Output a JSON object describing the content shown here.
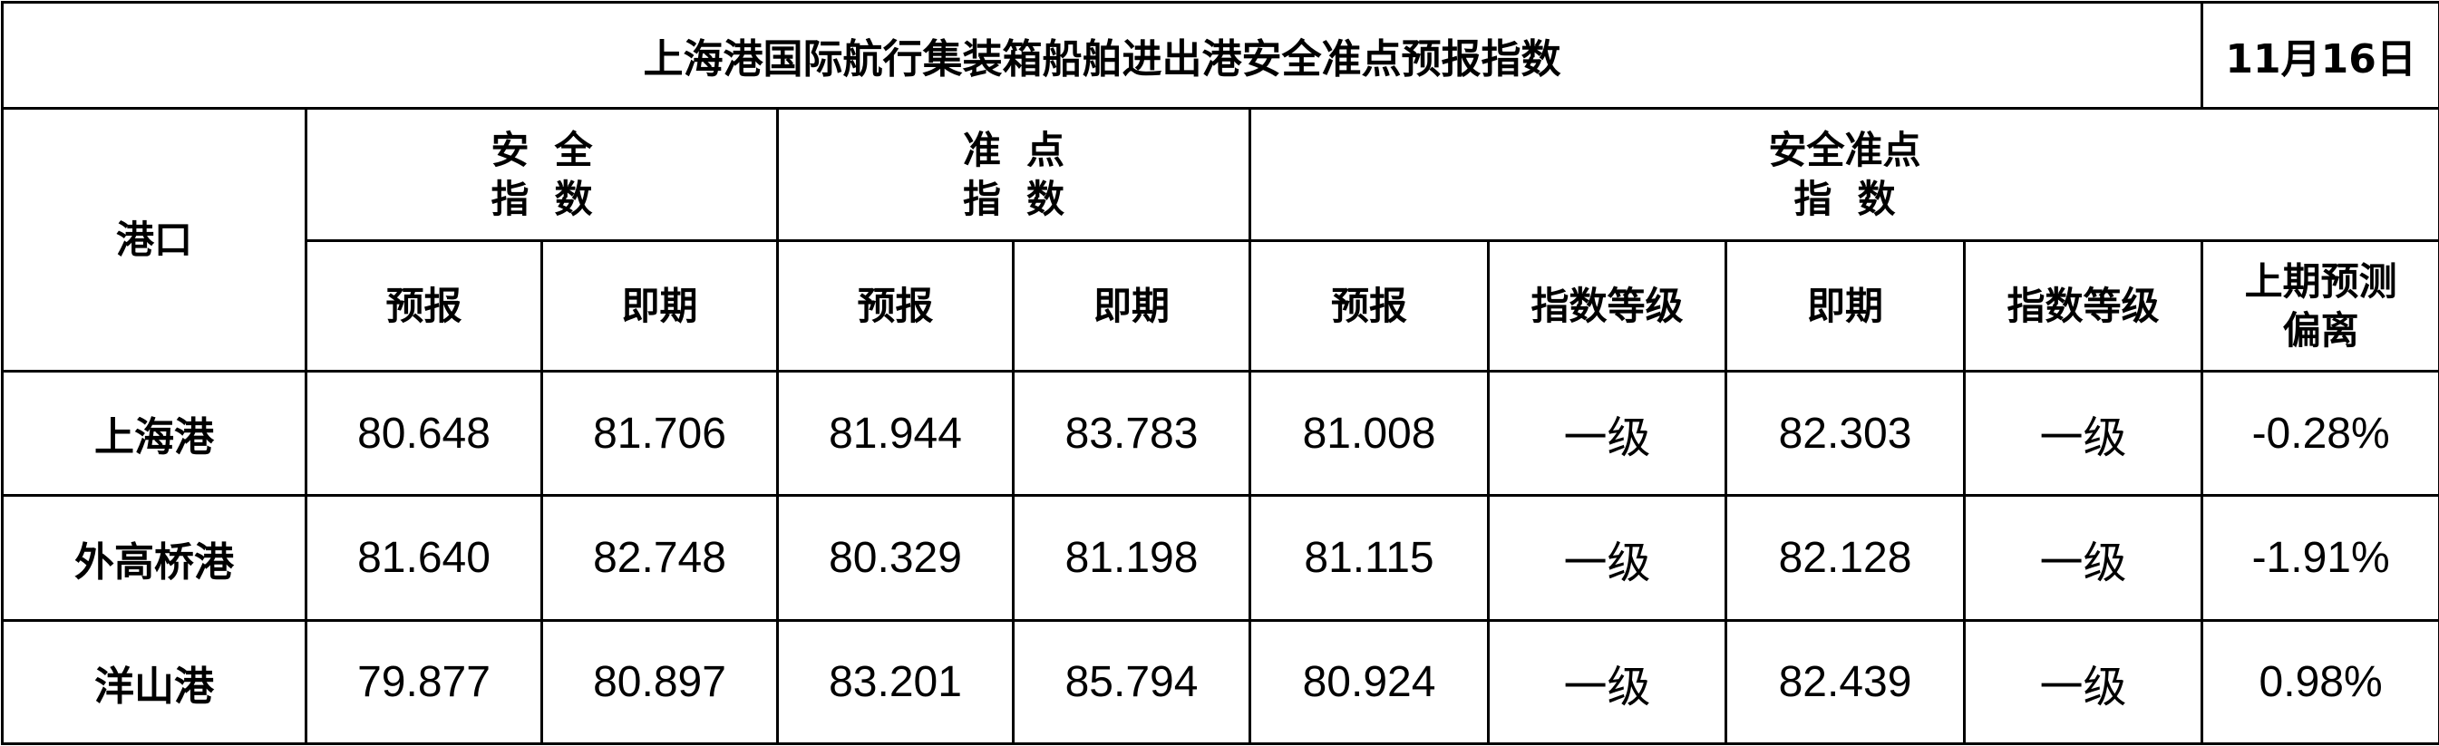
{
  "title": "上海港国际航行集装箱船舶进出港安全准点预报指数",
  "date": "11月16日",
  "headers": {
    "port": "港口",
    "safety": [
      "安全",
      "指数"
    ],
    "punctuality": [
      "准点",
      "指数"
    ],
    "combined": [
      "安全准点",
      "指数"
    ],
    "forecast": "预报",
    "current": "即期",
    "grade": "指数等级",
    "deviation": [
      "上期预测",
      "偏离"
    ]
  },
  "rows": [
    {
      "port": "上海港",
      "safety_forecast": "80.648",
      "safety_current": "81.706",
      "punct_forecast": "81.944",
      "punct_current": "83.783",
      "combined_forecast": "81.008",
      "forecast_grade": "一级",
      "combined_current": "82.303",
      "current_grade": "一级",
      "deviation": "-0.28%"
    },
    {
      "port": "外高桥港",
      "safety_forecast": "81.640",
      "safety_current": "82.748",
      "punct_forecast": "80.329",
      "punct_current": "81.198",
      "combined_forecast": "81.115",
      "forecast_grade": "一级",
      "combined_current": "82.128",
      "current_grade": "一级",
      "deviation": "-1.91%"
    },
    {
      "port": "洋山港",
      "safety_forecast": "79.877",
      "safety_current": "80.897",
      "punct_forecast": "83.201",
      "punct_current": "85.794",
      "combined_forecast": "80.924",
      "forecast_grade": "一级",
      "combined_current": "82.439",
      "current_grade": "一级",
      "deviation": "0.98%"
    }
  ]
}
